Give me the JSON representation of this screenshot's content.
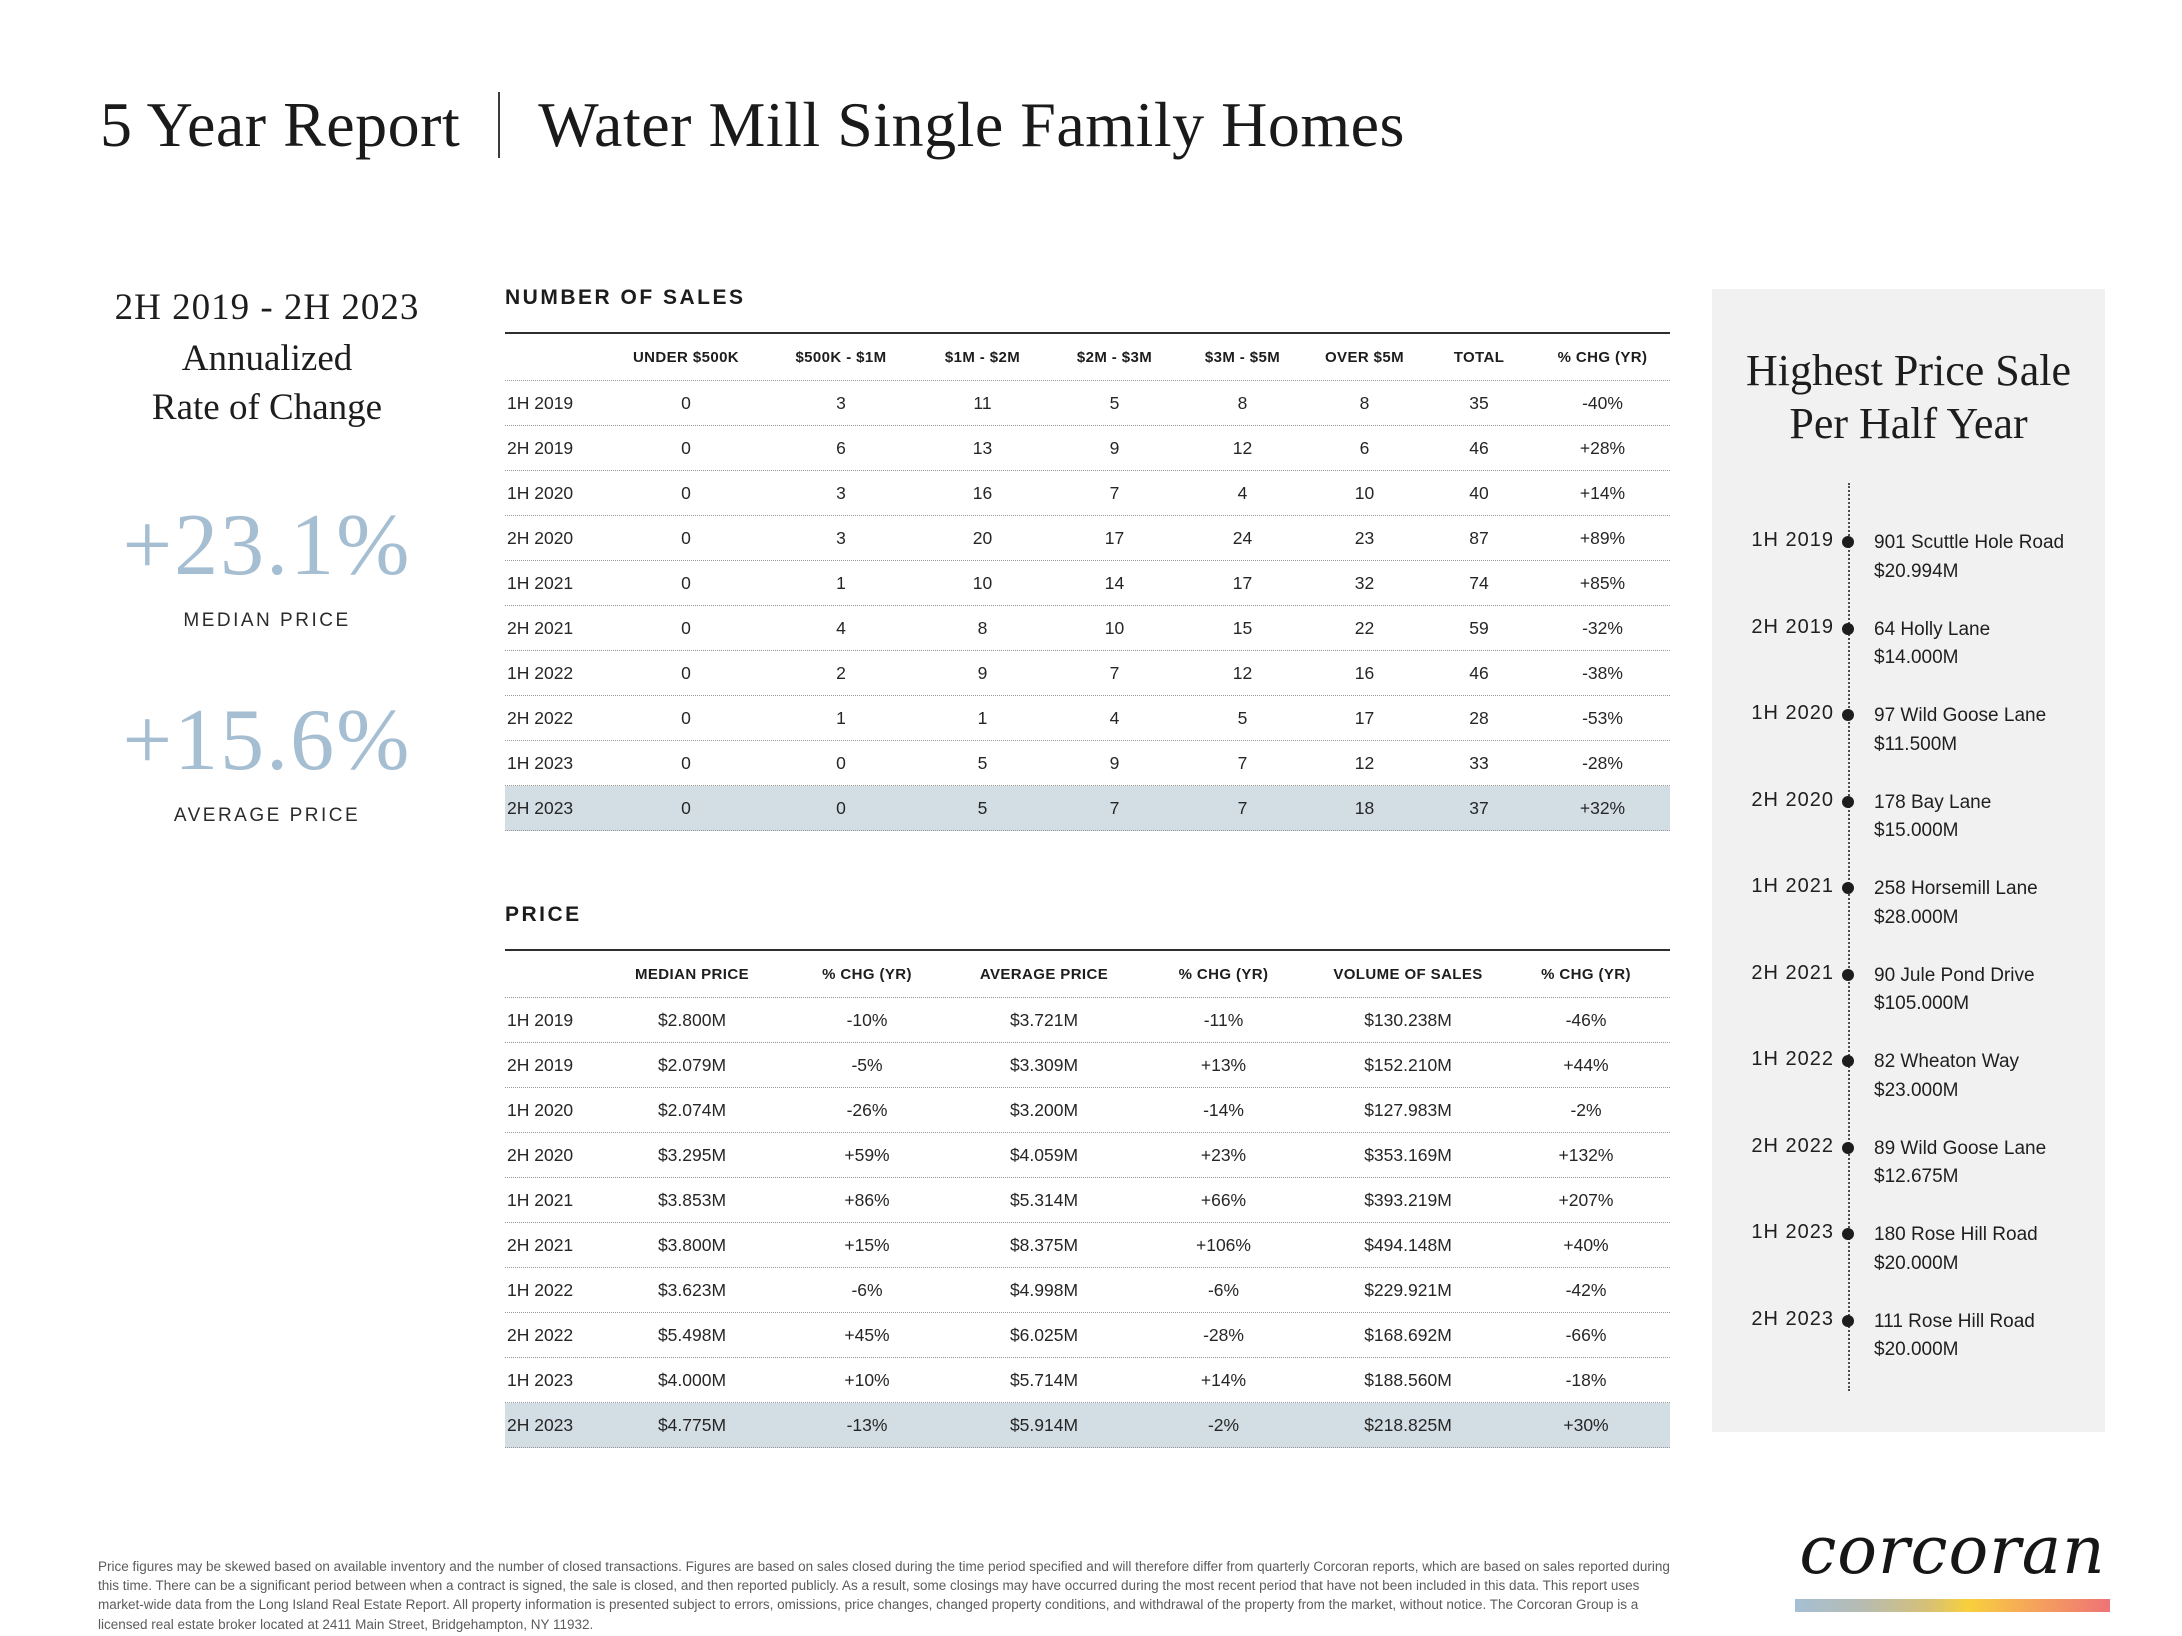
{
  "title": {
    "left": "5 Year Report",
    "right": "Water Mill Single Family Homes"
  },
  "stat_block": {
    "period_range": "2H 2019 - 2H 2023",
    "heading_line1": "Annualized",
    "heading_line2": "Rate of Change",
    "median": {
      "value": "+23.1%",
      "label": "MEDIAN PRICE"
    },
    "average": {
      "value": "+15.6%",
      "label": "AVERAGE PRICE"
    }
  },
  "sales_table": {
    "section_title": "NUMBER OF SALES",
    "columns": [
      "UNDER $500K",
      "$500K - $1M",
      "$1M - $2M",
      "$2M - $3M",
      "$3M - $5M",
      "OVER $5M",
      "TOTAL",
      "% CHG (YR)"
    ],
    "rows": [
      {
        "period": "1H 2019",
        "values": [
          "0",
          "3",
          "11",
          "5",
          "8",
          "8",
          "35",
          "-40%"
        ],
        "highlight": false
      },
      {
        "period": "2H 2019",
        "values": [
          "0",
          "6",
          "13",
          "9",
          "12",
          "6",
          "46",
          "+28%"
        ],
        "highlight": false
      },
      {
        "period": "1H 2020",
        "values": [
          "0",
          "3",
          "16",
          "7",
          "4",
          "10",
          "40",
          "+14%"
        ],
        "highlight": false
      },
      {
        "period": "2H 2020",
        "values": [
          "0",
          "3",
          "20",
          "17",
          "24",
          "23",
          "87",
          "+89%"
        ],
        "highlight": false
      },
      {
        "period": "1H 2021",
        "values": [
          "0",
          "1",
          "10",
          "14",
          "17",
          "32",
          "74",
          "+85%"
        ],
        "highlight": false
      },
      {
        "period": "2H 2021",
        "values": [
          "0",
          "4",
          "8",
          "10",
          "15",
          "22",
          "59",
          "-32%"
        ],
        "highlight": false
      },
      {
        "period": "1H 2022",
        "values": [
          "0",
          "2",
          "9",
          "7",
          "12",
          "16",
          "46",
          "-38%"
        ],
        "highlight": false
      },
      {
        "period": "2H 2022",
        "values": [
          "0",
          "1",
          "1",
          "4",
          "5",
          "17",
          "28",
          "-53%"
        ],
        "highlight": false
      },
      {
        "period": "1H 2023",
        "values": [
          "0",
          "0",
          "5",
          "9",
          "7",
          "12",
          "33",
          "-28%"
        ],
        "highlight": false
      },
      {
        "period": "2H 2023",
        "values": [
          "0",
          "0",
          "5",
          "7",
          "7",
          "18",
          "37",
          "+32%"
        ],
        "highlight": true
      }
    ]
  },
  "price_table": {
    "section_title": "PRICE",
    "columns": [
      "MEDIAN PRICE",
      "% CHG (YR)",
      "AVERAGE PRICE",
      "% CHG (YR)",
      "VOLUME OF SALES",
      "% CHG (YR)"
    ],
    "rows": [
      {
        "period": "1H 2019",
        "values": [
          "$2.800M",
          "-10%",
          "$3.721M",
          "-11%",
          "$130.238M",
          "-46%"
        ],
        "highlight": false
      },
      {
        "period": "2H 2019",
        "values": [
          "$2.079M",
          "-5%",
          "$3.309M",
          "+13%",
          "$152.210M",
          "+44%"
        ],
        "highlight": false
      },
      {
        "period": "1H 2020",
        "values": [
          "$2.074M",
          "-26%",
          "$3.200M",
          "-14%",
          "$127.983M",
          "-2%"
        ],
        "highlight": false
      },
      {
        "period": "2H 2020",
        "values": [
          "$3.295M",
          "+59%",
          "$4.059M",
          "+23%",
          "$353.169M",
          "+132%"
        ],
        "highlight": false
      },
      {
        "period": "1H 2021",
        "values": [
          "$3.853M",
          "+86%",
          "$5.314M",
          "+66%",
          "$393.219M",
          "+207%"
        ],
        "highlight": false
      },
      {
        "period": "2H 2021",
        "values": [
          "$3.800M",
          "+15%",
          "$8.375M",
          "+106%",
          "$494.148M",
          "+40%"
        ],
        "highlight": false
      },
      {
        "period": "1H 2022",
        "values": [
          "$3.623M",
          "-6%",
          "$4.998M",
          "-6%",
          "$229.921M",
          "-42%"
        ],
        "highlight": false
      },
      {
        "period": "2H 2022",
        "values": [
          "$5.498M",
          "+45%",
          "$6.025M",
          "-28%",
          "$168.692M",
          "-66%"
        ],
        "highlight": false
      },
      {
        "period": "1H 2023",
        "values": [
          "$4.000M",
          "+10%",
          "$5.714M",
          "+14%",
          "$188.560M",
          "-18%"
        ],
        "highlight": false
      },
      {
        "period": "2H 2023",
        "values": [
          "$4.775M",
          "-13%",
          "$5.914M",
          "-2%",
          "$218.825M",
          "+30%"
        ],
        "highlight": true
      }
    ]
  },
  "highest_panel": {
    "title_line1": "Highest Price Sale",
    "title_line2": "Per Half Year",
    "entries": [
      {
        "period": "1H 2019",
        "address": "901 Scuttle Hole Road",
        "price": "$20.994M"
      },
      {
        "period": "2H 2019",
        "address": "64 Holly Lane",
        "price": "$14.000M"
      },
      {
        "period": "1H 2020",
        "address": "97 Wild Goose Lane",
        "price": "$11.500M"
      },
      {
        "period": "2H 2020",
        "address": "178 Bay Lane",
        "price": "$15.000M"
      },
      {
        "period": "1H 2021",
        "address": "258 Horsemill Lane",
        "price": "$28.000M"
      },
      {
        "period": "2H 2021",
        "address": "90 Jule Pond Drive",
        "price": "$105.000M"
      },
      {
        "period": "1H 2022",
        "address": "82 Wheaton Way",
        "price": "$23.000M"
      },
      {
        "period": "2H 2022",
        "address": "89 Wild Goose Lane",
        "price": "$12.675M"
      },
      {
        "period": "1H 2023",
        "address": "180 Rose Hill Road",
        "price": "$20.000M"
      },
      {
        "period": "2H 2023",
        "address": "111 Rose Hill Road",
        "price": "$20.000M"
      }
    ]
  },
  "footer": {
    "disclaimer": "Price figures may be skewed based on available inventory and the number of closed transactions. Figures are based on sales closed during the time period specified and will therefore differ from quarterly Corcoran reports, which are based on sales reported during this time. There can be a significant period between when a contract is signed, the sale is closed, and then reported publicly. As a result, some closings may have occurred during the most recent period that have not been included in this data. This report uses market-wide data from the Long Island Real Estate Report. All property information is presented subject to errors, omissions, price changes, changed property conditions, and withdrawal of the property from the market, without notice. The Corcoran Group is a licensed real estate broker located at 2411 Main Street, Bridgehampton, NY 11932.",
    "brand": "corcoran"
  },
  "colors": {
    "accent_blue": "#a6bed2",
    "highlight_row": "#d3dee4",
    "panel_bg": "#f1f1f2"
  }
}
